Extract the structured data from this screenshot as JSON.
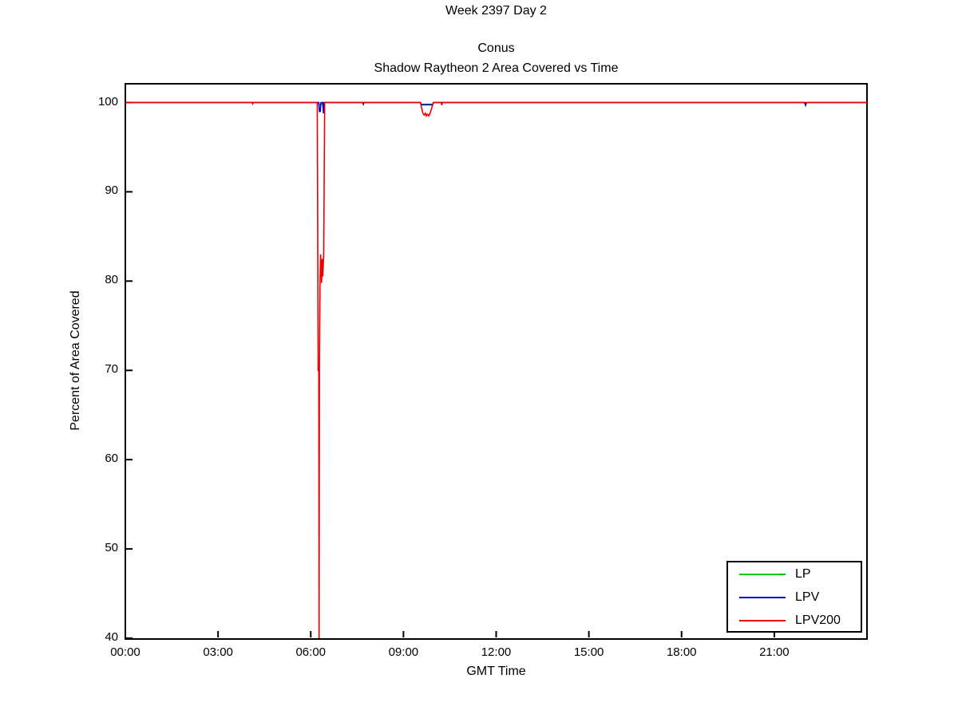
{
  "header": {
    "suptitle": "Week 2397 Day 2",
    "title_lines": [
      "Conus",
      "Shadow Raytheon 2 Area Covered vs Time"
    ]
  },
  "chart_data": {
    "type": "line",
    "suptitle": "Week 2397 Day 2",
    "title_lines": [
      "Conus",
      "Shadow Raytheon 2 Area Covered vs Time"
    ],
    "xlabel": "GMT Time",
    "ylabel": "Percent of Area Covered",
    "xlim_hours": [
      0,
      24
    ],
    "ylim_display": [
      40,
      102.1
    ],
    "y_ticks": [
      {
        "value": 40,
        "label": "40"
      },
      {
        "value": 50,
        "label": "50"
      },
      {
        "value": 60,
        "label": "60"
      },
      {
        "value": 70,
        "label": "70"
      },
      {
        "value": 80,
        "label": "80"
      },
      {
        "value": 90,
        "label": "90"
      },
      {
        "value": 100,
        "label": "100"
      }
    ],
    "x_ticks": [
      {
        "hour": 0,
        "label": "00:00"
      },
      {
        "hour": 3,
        "label": "03:00"
      },
      {
        "hour": 6,
        "label": "06:00"
      },
      {
        "hour": 9,
        "label": "09:00"
      },
      {
        "hour": 12,
        "label": "12:00"
      },
      {
        "hour": 15,
        "label": "15:00"
      },
      {
        "hour": 18,
        "label": "18:00"
      },
      {
        "hour": 21,
        "label": "21:00"
      }
    ],
    "grid": false,
    "legend_position": "lower-right",
    "axis_color": "#000000",
    "series": [
      {
        "name": "LP",
        "color": "#00cc00",
        "points": [
          [
            0,
            100
          ],
          [
            6.25,
            100
          ],
          [
            6.27,
            99.8
          ],
          [
            6.37,
            99.8
          ],
          [
            6.39,
            100
          ],
          [
            9.55,
            100
          ],
          [
            9.58,
            99.8
          ],
          [
            9.94,
            99.8
          ],
          [
            9.97,
            100
          ],
          [
            21.98,
            100
          ],
          [
            22.01,
            99.7
          ],
          [
            22.04,
            100
          ],
          [
            24,
            100
          ]
        ]
      },
      {
        "name": "LPV",
        "color": "#0000cc",
        "points": [
          [
            0,
            100
          ],
          [
            6.26,
            100
          ],
          [
            6.28,
            99.0
          ],
          [
            6.31,
            99.0
          ],
          [
            6.33,
            100
          ],
          [
            6.39,
            100
          ],
          [
            6.41,
            98.8
          ],
          [
            6.43,
            100
          ],
          [
            7.68,
            100
          ],
          [
            7.7,
            99.8
          ],
          [
            7.72,
            100
          ],
          [
            9.55,
            100
          ],
          [
            9.58,
            99.75
          ],
          [
            9.94,
            99.75
          ],
          [
            9.97,
            100
          ],
          [
            21.98,
            100
          ],
          [
            22.01,
            99.7
          ],
          [
            22.04,
            100
          ],
          [
            24,
            100
          ]
        ]
      },
      {
        "name": "LPV200",
        "color": "#ee0000",
        "points": [
          [
            0,
            100
          ],
          [
            4.1,
            100
          ],
          [
            4.12,
            99.85
          ],
          [
            4.14,
            100
          ],
          [
            6.21,
            100
          ],
          [
            6.23,
            80
          ],
          [
            6.24,
            70
          ],
          [
            6.26,
            70
          ],
          [
            6.27,
            40
          ],
          [
            6.28,
            70
          ],
          [
            6.3,
            80
          ],
          [
            6.32,
            83
          ],
          [
            6.35,
            79.8
          ],
          [
            6.37,
            82.5
          ],
          [
            6.39,
            80.5
          ],
          [
            6.42,
            83
          ],
          [
            6.45,
            100
          ],
          [
            9.55,
            100
          ],
          [
            9.6,
            99.2
          ],
          [
            9.63,
            98.8
          ],
          [
            9.67,
            98.6
          ],
          [
            9.71,
            98.8
          ],
          [
            9.74,
            98.5
          ],
          [
            9.78,
            98.7
          ],
          [
            9.82,
            98.5
          ],
          [
            9.86,
            98.8
          ],
          [
            9.9,
            99.2
          ],
          [
            9.94,
            99.7
          ],
          [
            9.97,
            100
          ],
          [
            10.22,
            100
          ],
          [
            10.24,
            99.7
          ],
          [
            10.26,
            100
          ],
          [
            24,
            100
          ]
        ]
      }
    ]
  }
}
